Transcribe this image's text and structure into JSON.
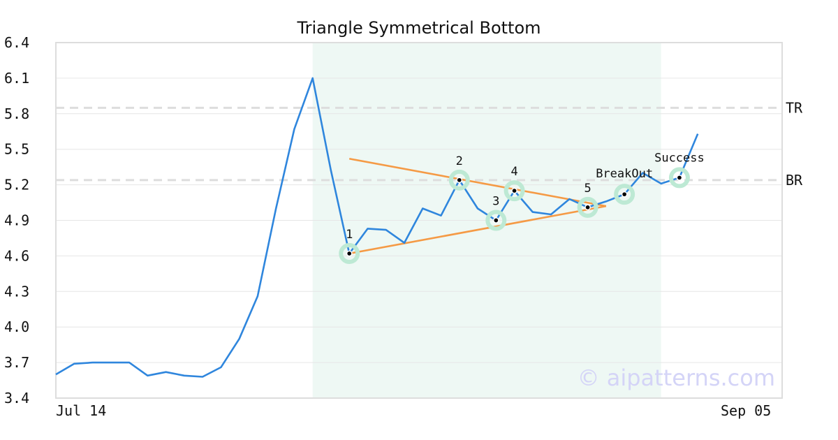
{
  "chart_data": {
    "type": "line",
    "title": "Triangle Symmetrical Bottom",
    "xlabel": "",
    "ylabel": "",
    "ylim": [
      3.4,
      6.4
    ],
    "y_ticks": [
      "6.4",
      "6.1",
      "5.8",
      "5.5",
      "5.2",
      "4.9",
      "4.6",
      "4.3",
      "4.0",
      "3.7",
      "3.4"
    ],
    "x_tick_labels": [
      "Jul 14",
      "Sep 05"
    ],
    "x_tick_at": [
      0,
      39
    ],
    "x_range": [
      0,
      39.6
    ],
    "grid": "horizontal",
    "colors": {
      "line": "#2f86dd",
      "trendline": "#f59a45",
      "pattern_zone": "#eef8f4",
      "marker_ring": "#bde9d4",
      "level_line": "#dddddd",
      "watermark": "#d4d4f7"
    },
    "series": [
      {
        "values": [
          3.6,
          3.69,
          3.7,
          3.7,
          3.7,
          3.59,
          3.62,
          3.59,
          3.58,
          3.66,
          3.9,
          4.26,
          5.0,
          5.67,
          6.1,
          5.32,
          4.62,
          4.83,
          4.82,
          4.71,
          5.0,
          4.94,
          5.24,
          5.0,
          4.9,
          5.15,
          4.97,
          4.95,
          5.08,
          5.01,
          5.06,
          5.12,
          5.3,
          5.21,
          5.26,
          5.63
        ]
      }
    ],
    "pattern_zone": {
      "from": 14,
      "to": 33
    },
    "trendlines": [
      {
        "from": [
          16,
          5.42
        ],
        "to": [
          30,
          5.02
        ]
      },
      {
        "from": [
          16,
          4.62
        ],
        "to": [
          30,
          5.02
        ]
      }
    ],
    "levels": [
      {
        "label": "TR",
        "value": 5.85
      },
      {
        "label": "BR",
        "value": 5.24
      }
    ],
    "markers": [
      {
        "label": "1",
        "x": 16,
        "y": 4.62
      },
      {
        "label": "2",
        "x": 22,
        "y": 5.24
      },
      {
        "label": "3",
        "x": 24,
        "y": 4.9
      },
      {
        "label": "4",
        "x": 25,
        "y": 5.15
      },
      {
        "label": "5",
        "x": 29,
        "y": 5.01
      },
      {
        "label": "BreakOut",
        "x": 31,
        "y": 5.12
      },
      {
        "label": "Success",
        "x": 34,
        "y": 5.26
      }
    ],
    "watermark": "© aipatterns.com"
  }
}
